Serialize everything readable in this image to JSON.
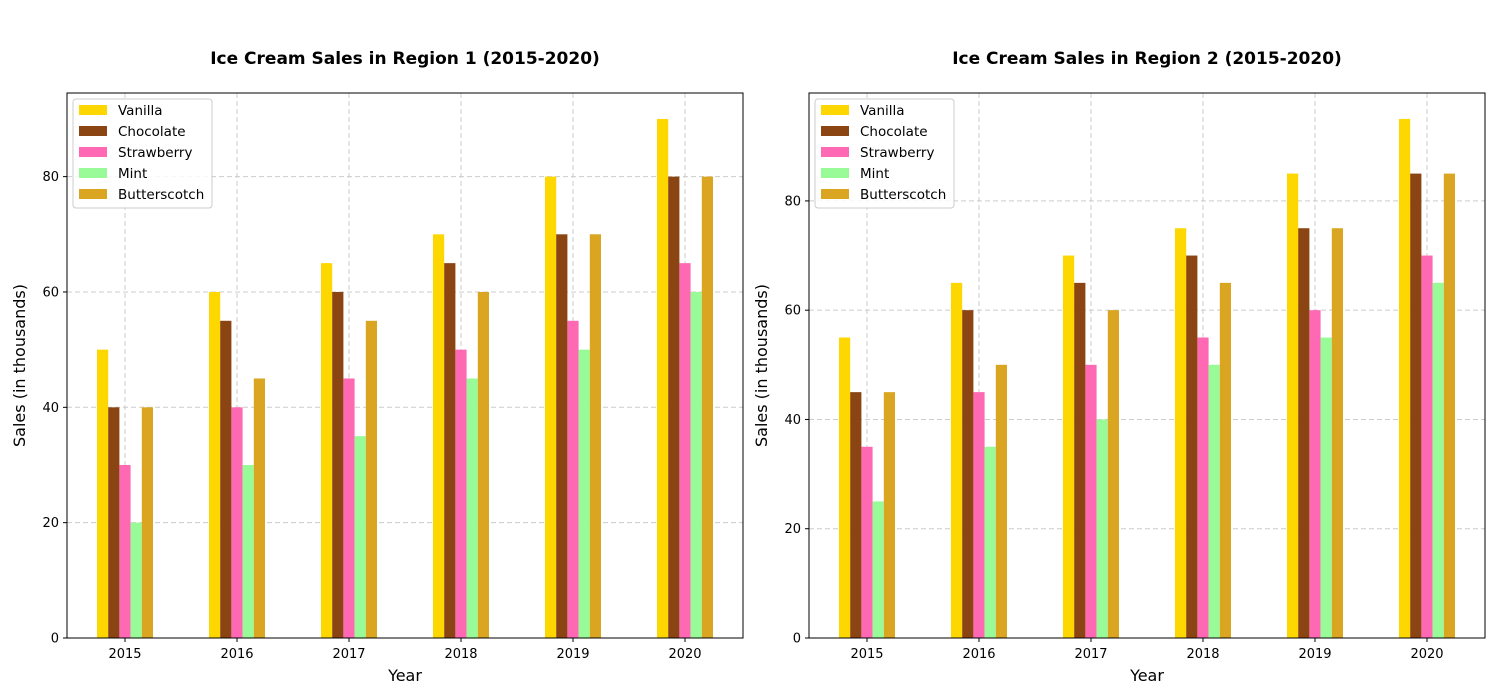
{
  "chart_data": [
    {
      "type": "bar",
      "title": "Ice Cream Sales in Region 1 (2015-2020)",
      "xlabel": "Year",
      "ylabel": "Sales (in thousands)",
      "categories": [
        "2015",
        "2016",
        "2017",
        "2018",
        "2019",
        "2020"
      ],
      "ylim": [
        0,
        94.5
      ],
      "yticks": [
        0,
        20,
        40,
        60,
        80
      ],
      "grid": true,
      "legend_position": "top-left",
      "series": [
        {
          "name": "Vanilla",
          "color": "#FFD700",
          "values": [
            50,
            60,
            65,
            70,
            80,
            90
          ]
        },
        {
          "name": "Chocolate",
          "color": "#8B4513",
          "values": [
            40,
            55,
            60,
            65,
            70,
            80
          ]
        },
        {
          "name": "Strawberry",
          "color": "#FF69B4",
          "values": [
            30,
            40,
            45,
            50,
            55,
            65
          ]
        },
        {
          "name": "Mint",
          "color": "#98FB98",
          "values": [
            20,
            30,
            35,
            45,
            50,
            60
          ]
        },
        {
          "name": "Butterscotch",
          "color": "#DAA520",
          "values": [
            40,
            45,
            55,
            60,
            70,
            80
          ]
        }
      ]
    },
    {
      "type": "bar",
      "title": "Ice Cream Sales in Region 2 (2015-2020)",
      "xlabel": "Year",
      "ylabel": "Sales (in thousands)",
      "categories": [
        "2015",
        "2016",
        "2017",
        "2018",
        "2019",
        "2020"
      ],
      "ylim": [
        0,
        99.75
      ],
      "yticks": [
        0,
        20,
        40,
        60,
        80
      ],
      "grid": true,
      "legend_position": "top-left",
      "series": [
        {
          "name": "Vanilla",
          "color": "#FFD700",
          "values": [
            55,
            65,
            70,
            75,
            85,
            95
          ]
        },
        {
          "name": "Chocolate",
          "color": "#8B4513",
          "values": [
            45,
            60,
            65,
            70,
            75,
            85
          ]
        },
        {
          "name": "Strawberry",
          "color": "#FF69B4",
          "values": [
            35,
            45,
            50,
            55,
            60,
            70
          ]
        },
        {
          "name": "Mint",
          "color": "#98FB98",
          "values": [
            25,
            35,
            40,
            50,
            55,
            65
          ]
        },
        {
          "name": "Butterscotch",
          "color": "#DAA520",
          "values": [
            45,
            50,
            60,
            65,
            75,
            85
          ]
        }
      ]
    }
  ]
}
